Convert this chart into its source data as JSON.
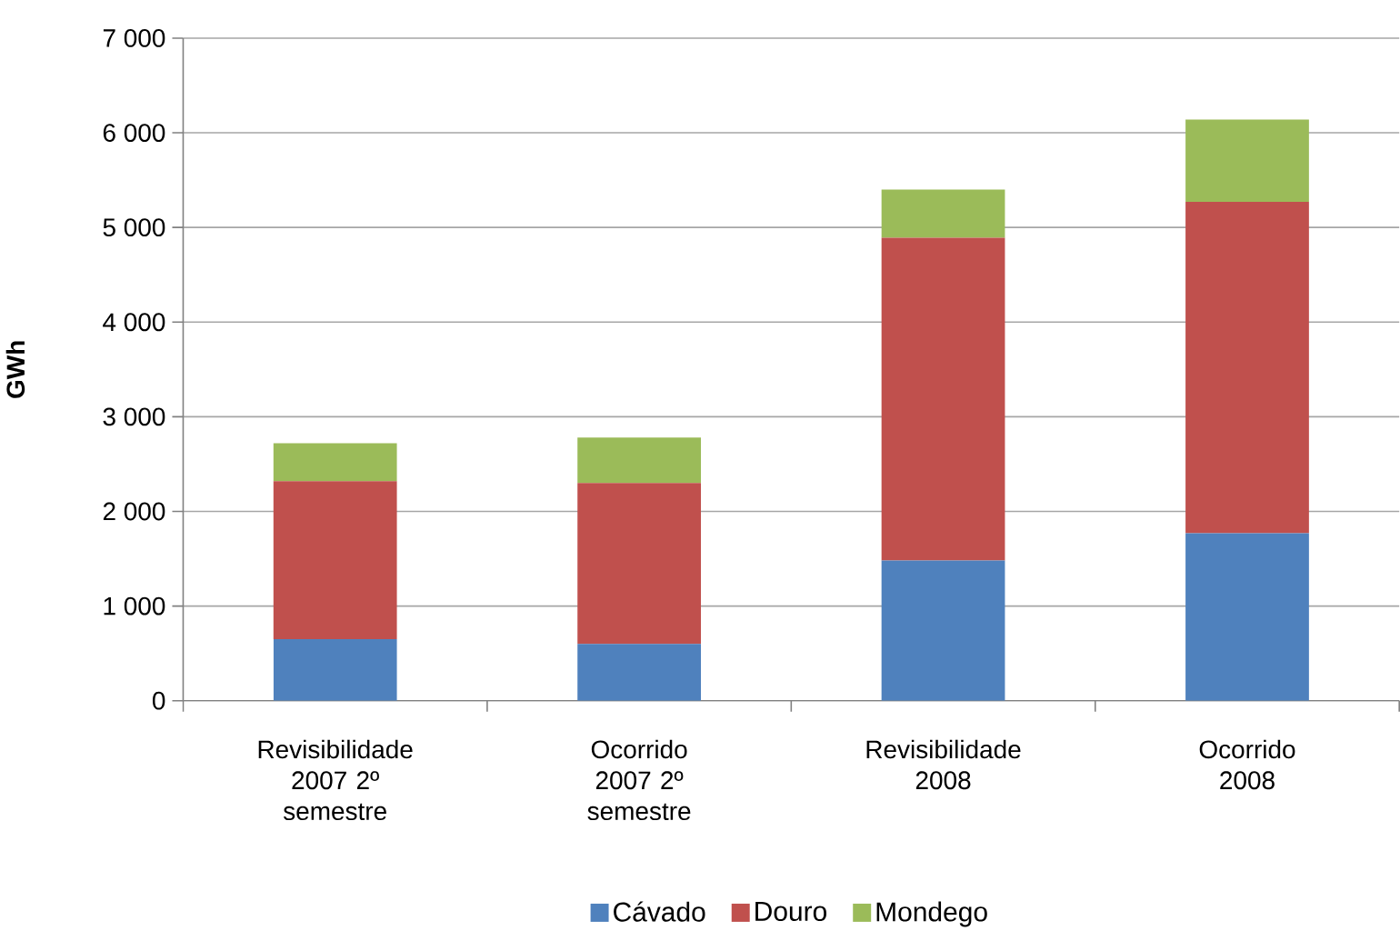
{
  "chart_data": {
    "type": "bar",
    "stacked": true,
    "ylabel": "GWh",
    "categories": [
      "Revisibilidade 2007 2º semestre",
      "Ocorrido 2007 2º semestre",
      "Revisibilidade 2008",
      "Ocorrido 2008"
    ],
    "series": [
      {
        "name": "Cávado",
        "color": "#4f81bd",
        "values": [
          650,
          600,
          1480,
          1770
        ]
      },
      {
        "name": "Douro",
        "color": "#c0504d",
        "values": [
          1670,
          1700,
          3410,
          3500
        ]
      },
      {
        "name": "Mondego",
        "color": "#9bbb59",
        "values": [
          400,
          480,
          510,
          870
        ]
      }
    ],
    "ylim": [
      0,
      7000
    ],
    "yticks": [
      0,
      {
        "value": 1000,
        "label": "1 000"
      },
      {
        "value": 2000,
        "label": "2 000"
      },
      {
        "value": 3000,
        "label": "3 000"
      },
      {
        "value": 4000,
        "label": "4 000"
      },
      {
        "value": 5000,
        "label": "5 000"
      },
      {
        "value": 6000,
        "label": "6 000"
      },
      {
        "value": 7000,
        "label": "7 000"
      }
    ],
    "grid": "y",
    "legend": "bottom"
  }
}
